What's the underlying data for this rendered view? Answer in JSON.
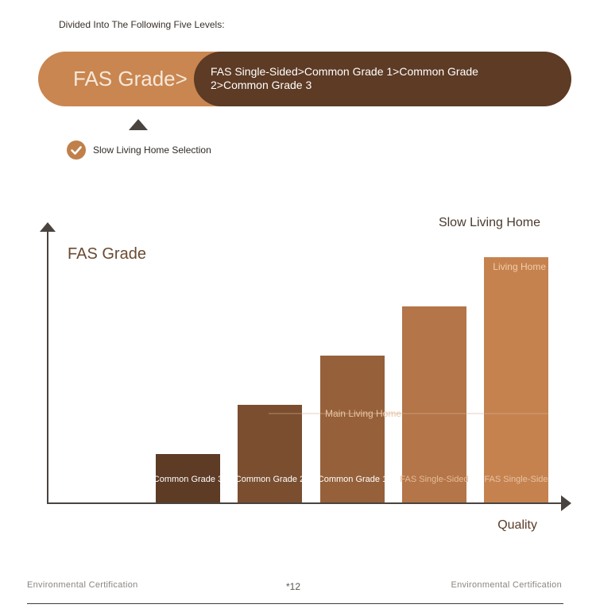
{
  "intro": "Divided Into The Following Five Levels:",
  "grade_banner": {
    "label": "FAS Grade>",
    "description": "FAS Single-Sided>Common Grade 1>Common Grade 2>Common Grade 3"
  },
  "selection": {
    "label": "Slow Living Home Selection",
    "icon": "check-icon"
  },
  "colors": {
    "banner_light": "#c98650",
    "banner_dark": "#5d3b24",
    "bar_1": "#5d3b24",
    "bar_2": "#7a4e2f",
    "bar_3": "#96603a",
    "bar_4": "#b47548",
    "bar_5": "#c5824f"
  },
  "chart_data": {
    "type": "bar",
    "ylabel": "FAS Grade",
    "xlabel": "Quality",
    "categories": [
      "Common Grade 3",
      "Common Grade 2",
      "Common Grade 1",
      "FAS Single-Sided",
      "FAS Single-Side"
    ],
    "values": [
      1,
      2,
      3,
      4,
      5
    ],
    "ylim": [
      0,
      5.5
    ],
    "grid": false,
    "annotations": [
      {
        "text": "Slow Living Home"
      },
      {
        "text": "Living Home"
      },
      {
        "text": "Main Living Home"
      }
    ]
  },
  "footer": {
    "left": "Environmental Certification",
    "page": "*12",
    "right": "Environmental Certification"
  }
}
